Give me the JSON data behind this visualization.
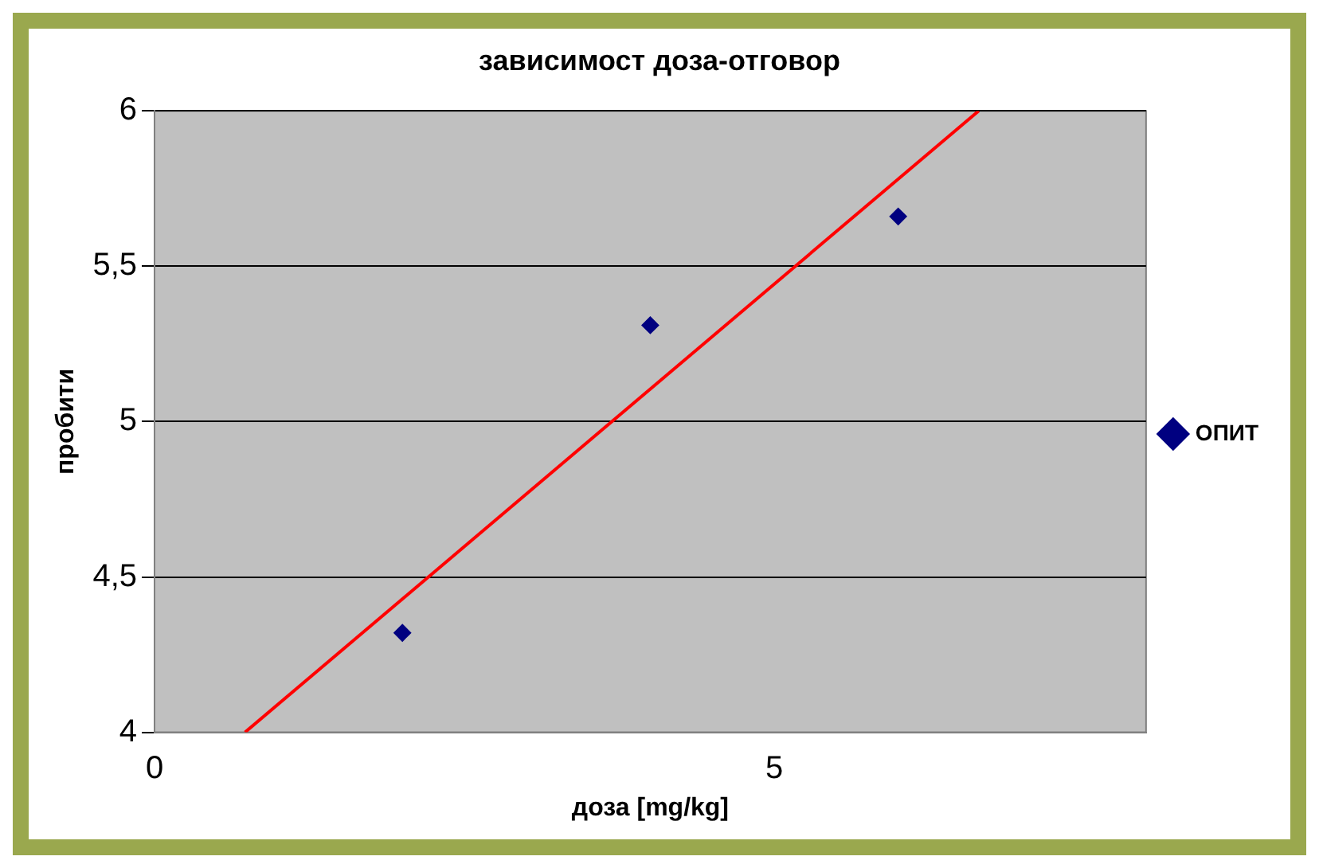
{
  "chart_data": {
    "type": "scatter",
    "title": "зависимост доза-отговор",
    "xlabel": "доза [mg/kg]",
    "ylabel": "пробити",
    "series": [
      {
        "name": "ОПИТ",
        "color": "#000080",
        "x": [
          2,
          4,
          6
        ],
        "values": [
          4.32,
          5.31,
          5.66
        ],
        "marker": "diamond"
      },
      {
        "type": "line",
        "color": "#ff0000",
        "x": [
          0.73,
          6.65
        ],
        "values": [
          4,
          6
        ],
        "marker": "none"
      }
    ],
    "xlim": [
      0,
      8
    ],
    "xticks": [
      0,
      5
    ],
    "ylim": [
      4,
      6
    ],
    "yticks": [
      4,
      {
        "value": 4.5,
        "label": "4,5"
      },
      5,
      {
        "value": 5.5,
        "label": "5,5"
      },
      6
    ],
    "grid": "y",
    "legend": "right"
  }
}
